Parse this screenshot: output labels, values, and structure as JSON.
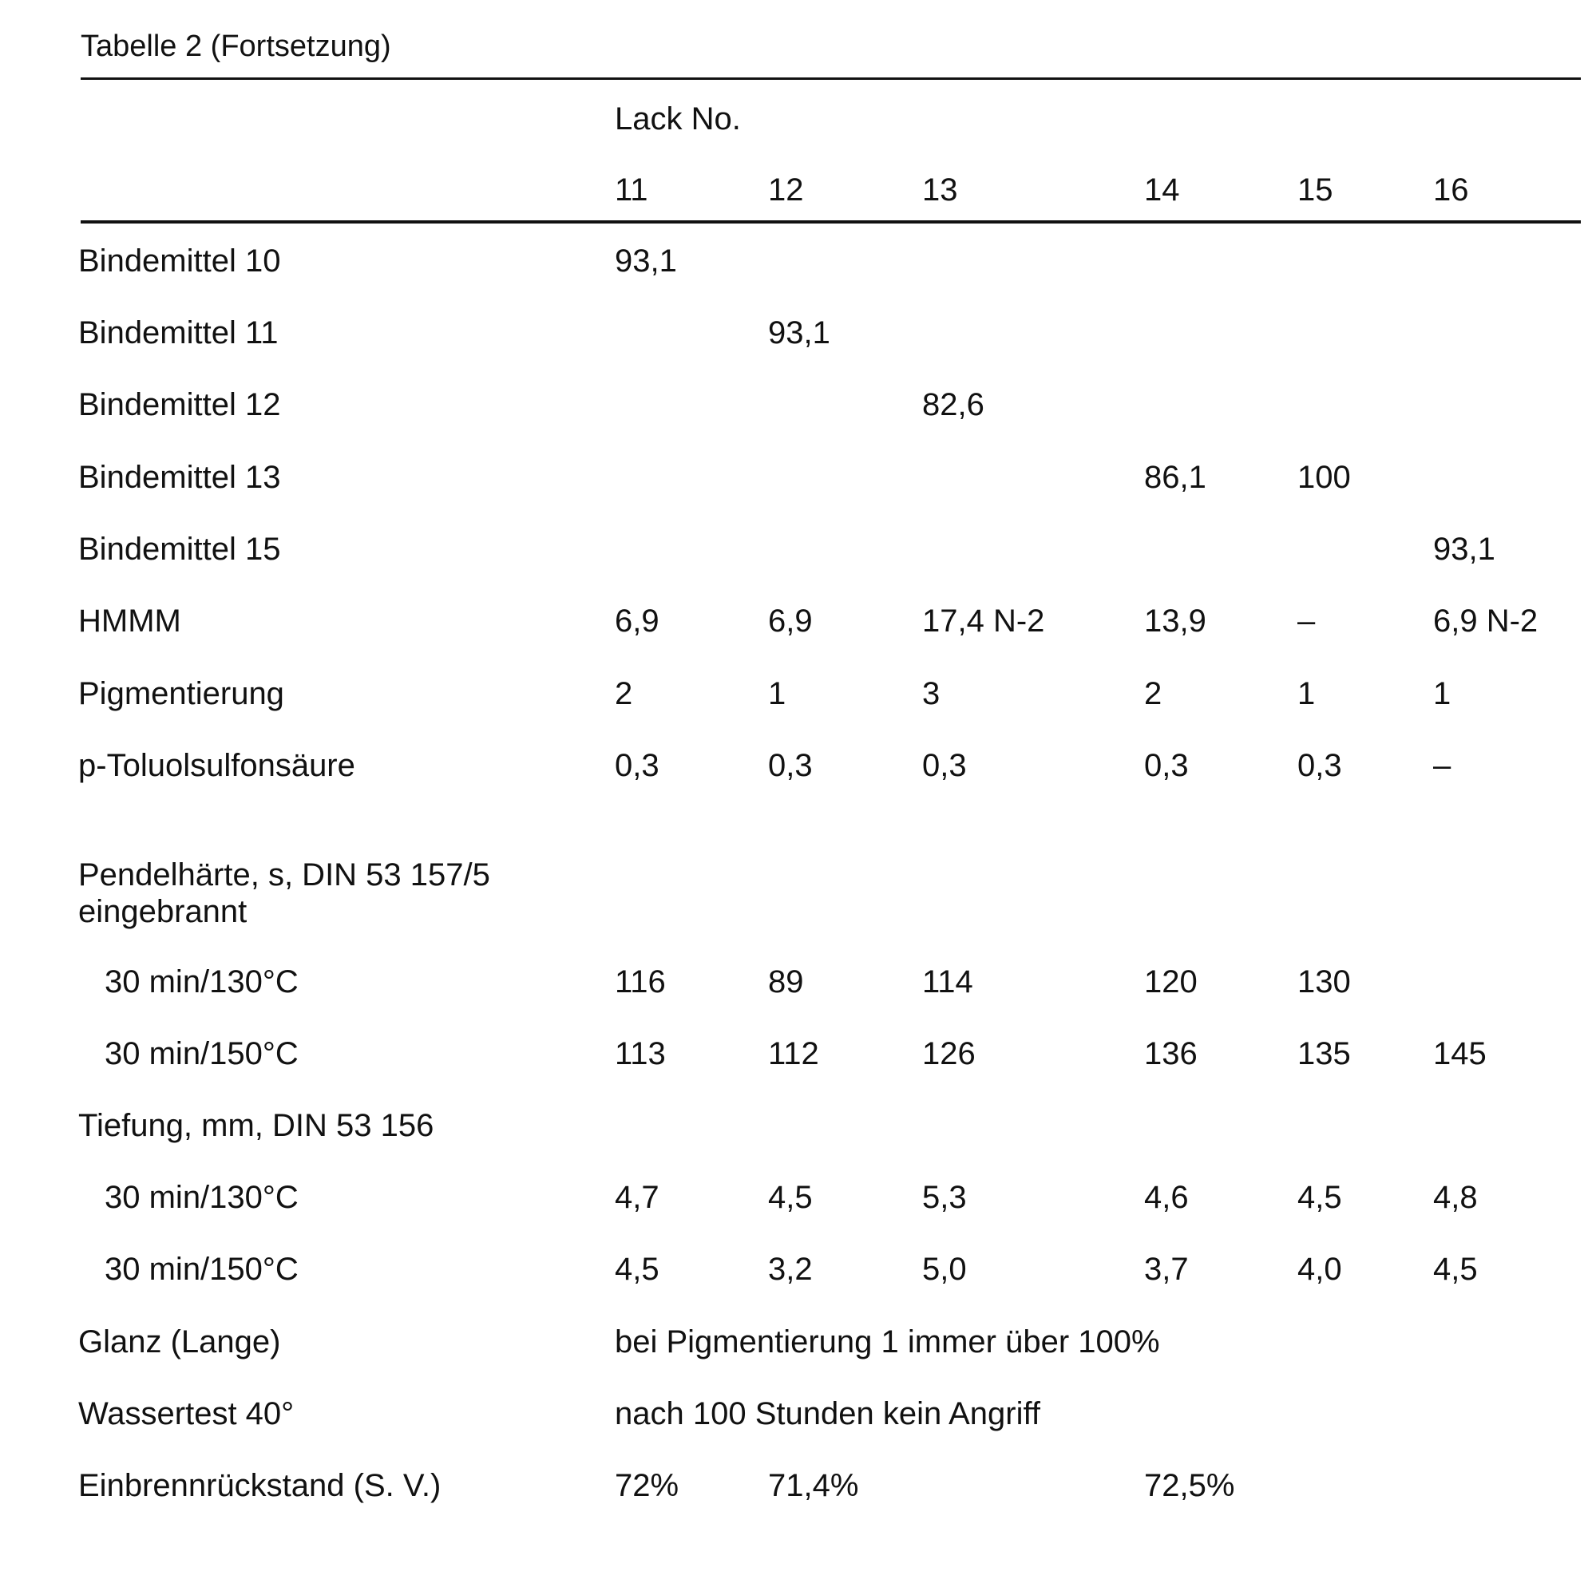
{
  "table": {
    "caption": "Tabelle 2 (Fortsetzung)",
    "group_header": "Lack No.",
    "columns": [
      "11",
      "12",
      "13",
      "14",
      "15",
      "16"
    ],
    "rows": [
      {
        "label": "Bindemittel 10",
        "values": [
          "93,1",
          "",
          "",
          "",
          "",
          ""
        ]
      },
      {
        "label": "Bindemittel 11",
        "values": [
          "",
          "93,1",
          "",
          "",
          "",
          ""
        ]
      },
      {
        "label": "Bindemittel 12",
        "values": [
          "",
          "",
          "82,6",
          "",
          "",
          ""
        ]
      },
      {
        "label": "Bindemittel 13",
        "values": [
          "",
          "",
          "",
          "86,1",
          "100",
          ""
        ]
      },
      {
        "label": "Bindemittel 15",
        "values": [
          "",
          "",
          "",
          "",
          "",
          "93,1"
        ]
      },
      {
        "label": "HMMM",
        "values": [
          "6,9",
          "6,9",
          "17,4 N-2",
          "13,9",
          "–",
          "6,9 N-2"
        ]
      },
      {
        "label": "Pigmentierung",
        "values": [
          "2",
          "1",
          "3",
          "2",
          "1",
          "1"
        ]
      },
      {
        "label": "p-Toluolsulfonsäure",
        "values": [
          "0,3",
          "0,3",
          "0,3",
          "0,3",
          "0,3",
          "–"
        ]
      },
      {
        "label": "Pendelhärte, s, DIN 53 157/5 eingebrannt",
        "values": [
          "",
          "",
          "",
          "",
          "",
          ""
        ]
      },
      {
        "label": "30 min/130°C",
        "indent": true,
        "values": [
          "116",
          "89",
          "114",
          "120",
          "130",
          ""
        ]
      },
      {
        "label": "30 min/150°C",
        "indent": true,
        "values": [
          "113",
          "112",
          "126",
          "136",
          "135",
          "145"
        ]
      },
      {
        "label": "Tiefung, mm, DIN 53 156",
        "values": [
          "",
          "",
          "",
          "",
          "",
          ""
        ]
      },
      {
        "label": "30 min/130°C",
        "indent": true,
        "values": [
          "4,7",
          "4,5",
          "5,3",
          "4,6",
          "4,5",
          "4,8"
        ]
      },
      {
        "label": "30 min/150°C",
        "indent": true,
        "values": [
          "4,5",
          "3,2",
          "5,0",
          "3,7",
          "4,0",
          "4,5"
        ]
      },
      {
        "label": "Glanz (Lange)",
        "span_text": "bei Pigmentierung 1 immer über 100%"
      },
      {
        "label": "Wassertest 40°",
        "span_text": "nach 100 Stunden kein Angriff"
      },
      {
        "label": "Einbrennrückstand (S. V.)",
        "values": [
          "72%",
          "71,4%",
          "",
          "72,5%",
          "",
          ""
        ]
      }
    ]
  }
}
